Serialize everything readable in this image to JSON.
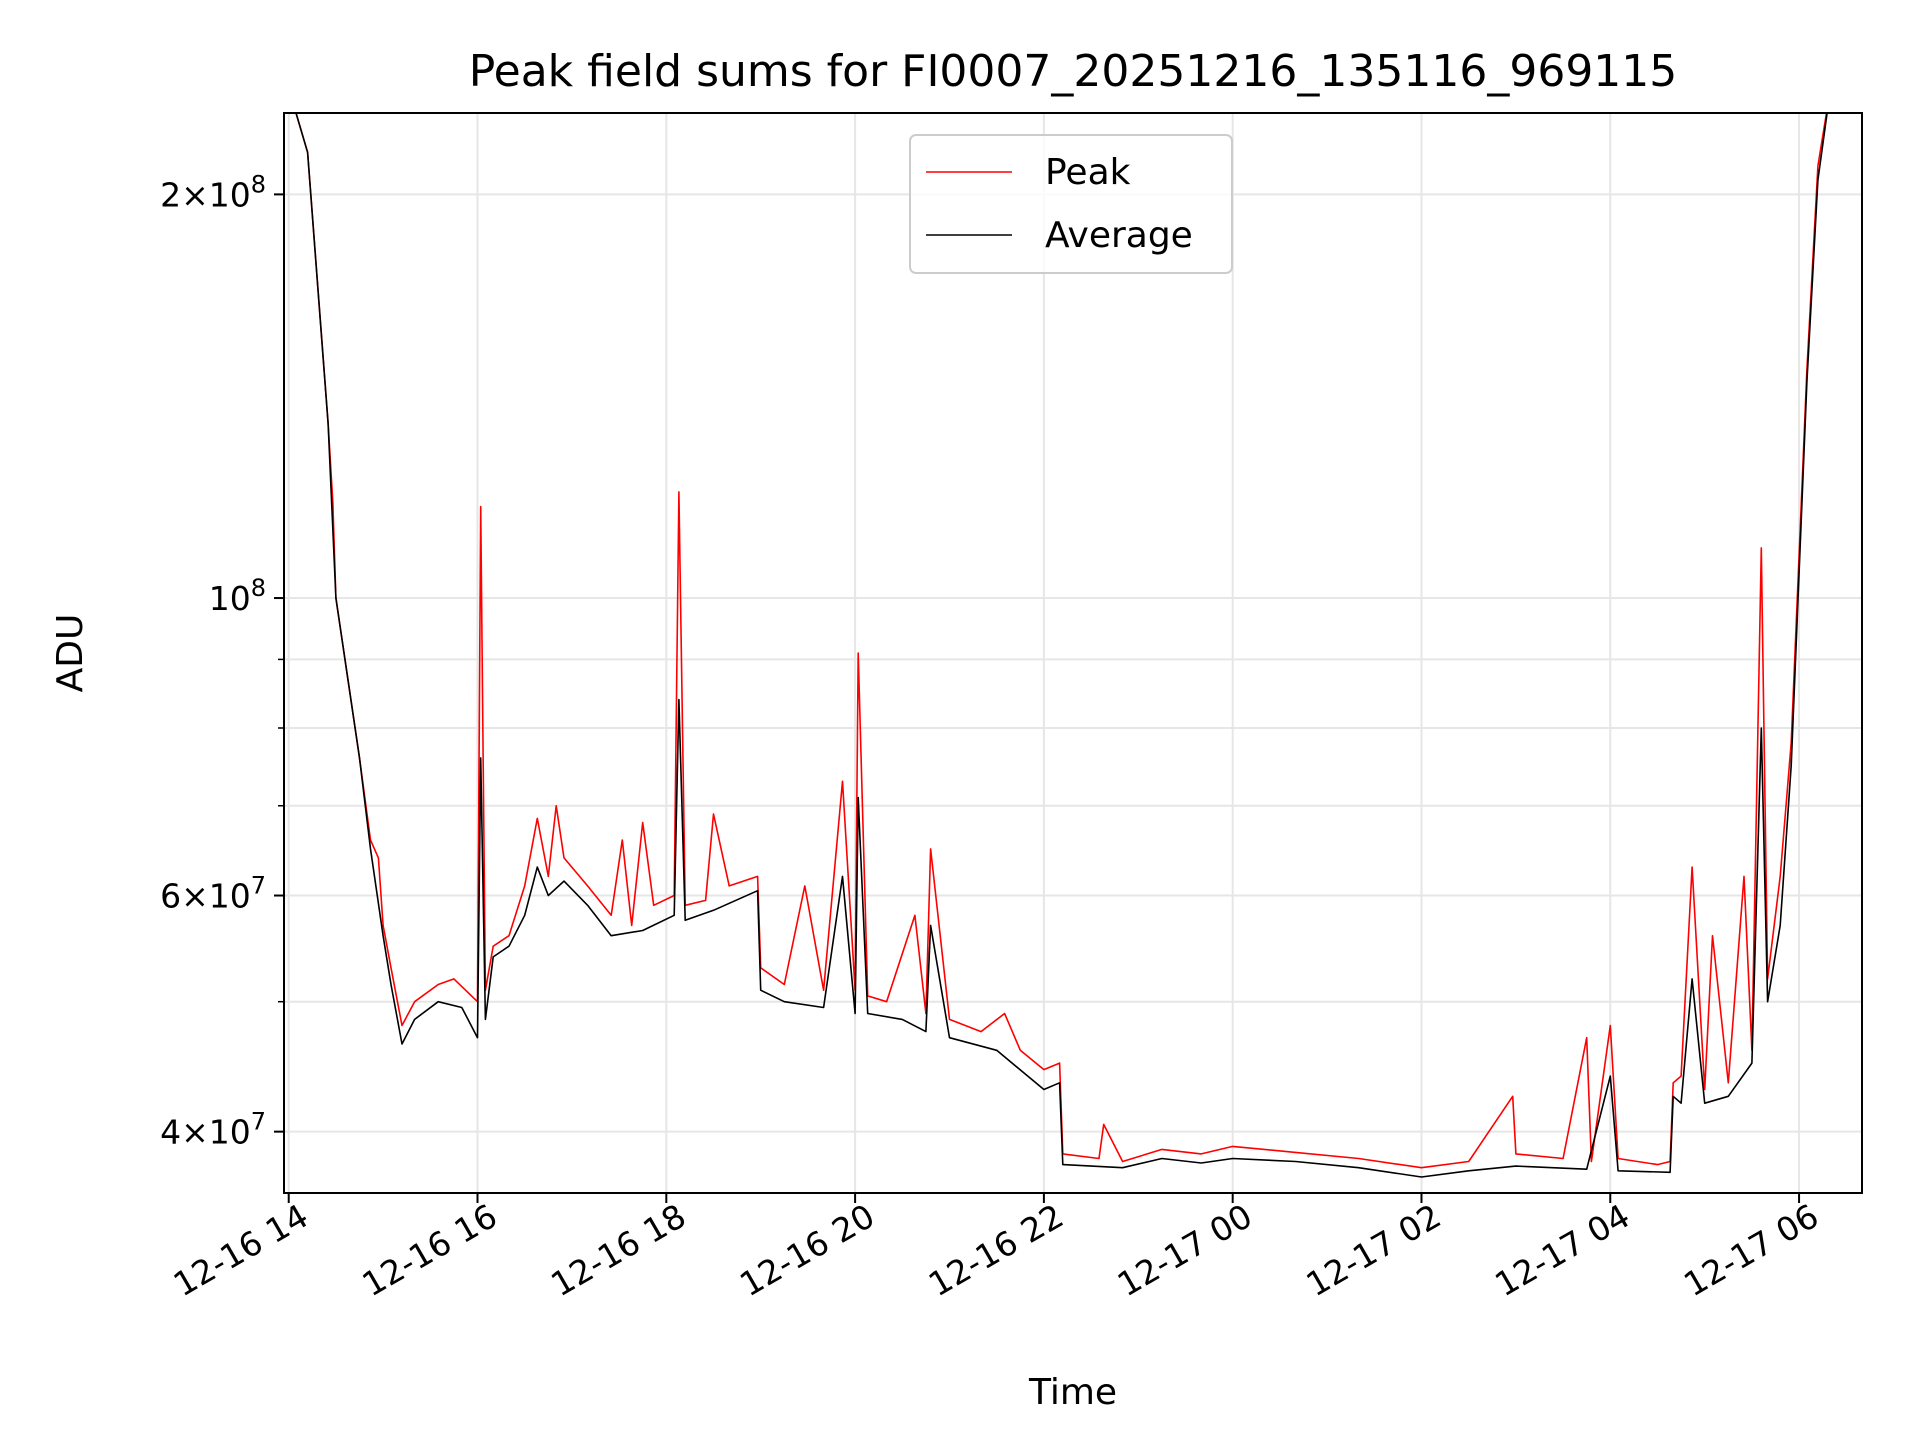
{
  "chart_data": {
    "type": "line",
    "title": "Peak field sums for FI0007_20251216_135116_969115",
    "xlabel": "Time",
    "ylabel": "ADU",
    "yscale": "log",
    "ylim": [
      36000000,
      230000000
    ],
    "xlim": [
      "2025-12-16 13:57",
      "2025-12-17 06:40"
    ],
    "grid": true,
    "legend_position": "upper center",
    "x_ticks": [
      "12-16 14",
      "12-16 16",
      "12-16 18",
      "12-16 20",
      "12-16 22",
      "12-17 00",
      "12-17 02",
      "12-17 04",
      "12-17 06"
    ],
    "y_ticks": [
      {
        "value": 40000000,
        "base": "4",
        "exp": "7"
      },
      {
        "value": 60000000,
        "base": "6",
        "exp": "7"
      },
      {
        "value": 100000000,
        "base": "",
        "exp": "8"
      },
      {
        "value": 200000000,
        "base": "2",
        "exp": "8"
      }
    ],
    "series": [
      {
        "name": "Peak",
        "color": "#ff0000",
        "points": [
          [
            "2025-12-16 14:00",
            240000000
          ],
          [
            "2025-12-16 14:12",
            215000000
          ],
          [
            "2025-12-16 14:25",
            135000000
          ],
          [
            "2025-12-16 14:28",
            118000000
          ],
          [
            "2025-12-16 14:30",
            100000000
          ],
          [
            "2025-12-16 14:37",
            88000000
          ],
          [
            "2025-12-16 14:45",
            76000000
          ],
          [
            "2025-12-16 14:52",
            66000000
          ],
          [
            "2025-12-16 14:57",
            64000000
          ],
          [
            "2025-12-16 15:00",
            57000000
          ],
          [
            "2025-12-16 15:05",
            53000000
          ],
          [
            "2025-12-16 15:12",
            48000000
          ],
          [
            "2025-12-16 15:20",
            50000000
          ],
          [
            "2025-12-16 15:35",
            51500000
          ],
          [
            "2025-12-16 15:45",
            52000000
          ],
          [
            "2025-12-16 16:00",
            50000000
          ],
          [
            "2025-12-16 16:02",
            117000000
          ],
          [
            "2025-12-16 16:05",
            51000000
          ],
          [
            "2025-12-16 16:10",
            55000000
          ],
          [
            "2025-12-16 16:20",
            56000000
          ],
          [
            "2025-12-16 16:30",
            61000000
          ],
          [
            "2025-12-16 16:38",
            68500000
          ],
          [
            "2025-12-16 16:45",
            62000000
          ],
          [
            "2025-12-16 16:50",
            70000000
          ],
          [
            "2025-12-16 16:55",
            64000000
          ],
          [
            "2025-12-16 17:10",
            61000000
          ],
          [
            "2025-12-16 17:25",
            58000000
          ],
          [
            "2025-12-16 17:32",
            66000000
          ],
          [
            "2025-12-16 17:38",
            57000000
          ],
          [
            "2025-12-16 17:45",
            68000000
          ],
          [
            "2025-12-16 17:52",
            59000000
          ],
          [
            "2025-12-16 18:05",
            60000000
          ],
          [
            "2025-12-16 18:08",
            120000000
          ],
          [
            "2025-12-16 18:12",
            59000000
          ],
          [
            "2025-12-16 18:25",
            59500000
          ],
          [
            "2025-12-16 18:30",
            69000000
          ],
          [
            "2025-12-16 18:40",
            61000000
          ],
          [
            "2025-12-16 18:58",
            62000000
          ],
          [
            "2025-12-16 19:00",
            53000000
          ],
          [
            "2025-12-16 19:15",
            51500000
          ],
          [
            "2025-12-16 19:28",
            61000000
          ],
          [
            "2025-12-16 19:40",
            51000000
          ],
          [
            "2025-12-16 19:52",
            73000000
          ],
          [
            "2025-12-16 20:00",
            51000000
          ],
          [
            "2025-12-16 20:02",
            91000000
          ],
          [
            "2025-12-16 20:08",
            50500000
          ],
          [
            "2025-12-16 20:20",
            50000000
          ],
          [
            "2025-12-16 20:38",
            58000000
          ],
          [
            "2025-12-16 20:45",
            49000000
          ],
          [
            "2025-12-16 20:48",
            65000000
          ],
          [
            "2025-12-16 21:00",
            48500000
          ],
          [
            "2025-12-16 21:20",
            47500000
          ],
          [
            "2025-12-16 21:35",
            49000000
          ],
          [
            "2025-12-16 21:45",
            46000000
          ],
          [
            "2025-12-16 22:00",
            44500000
          ],
          [
            "2025-12-16 22:10",
            45000000
          ],
          [
            "2025-12-16 22:12",
            38500000
          ],
          [
            "2025-12-16 22:35",
            38200000
          ],
          [
            "2025-12-16 22:38",
            40500000
          ],
          [
            "2025-12-16 22:50",
            38000000
          ],
          [
            "2025-12-16 23:15",
            38800000
          ],
          [
            "2025-12-16 23:40",
            38500000
          ],
          [
            "2025-12-17 00:00",
            39000000
          ],
          [
            "2025-12-17 00:40",
            38600000
          ],
          [
            "2025-12-17 01:20",
            38200000
          ],
          [
            "2025-12-17 02:00",
            37600000
          ],
          [
            "2025-12-17 02:30",
            38000000
          ],
          [
            "2025-12-17 02:58",
            42500000
          ],
          [
            "2025-12-17 03:00",
            38500000
          ],
          [
            "2025-12-17 03:30",
            38200000
          ],
          [
            "2025-12-17 03:45",
            47000000
          ],
          [
            "2025-12-17 03:48",
            38000000
          ],
          [
            "2025-12-17 04:00",
            48000000
          ],
          [
            "2025-12-17 04:05",
            38200000
          ],
          [
            "2025-12-17 04:30",
            37800000
          ],
          [
            "2025-12-17 04:38",
            38000000
          ],
          [
            "2025-12-17 04:40",
            43500000
          ],
          [
            "2025-12-17 04:45",
            44000000
          ],
          [
            "2025-12-17 04:52",
            63000000
          ],
          [
            "2025-12-17 05:00",
            43000000
          ],
          [
            "2025-12-17 05:05",
            56000000
          ],
          [
            "2025-12-17 05:15",
            43500000
          ],
          [
            "2025-12-17 05:25",
            62000000
          ],
          [
            "2025-12-17 05:30",
            46000000
          ],
          [
            "2025-12-17 05:36",
            109000000
          ],
          [
            "2025-12-17 05:40",
            52000000
          ],
          [
            "2025-12-17 05:48",
            62000000
          ],
          [
            "2025-12-17 05:55",
            78000000
          ],
          [
            "2025-12-17 06:05",
            148000000
          ],
          [
            "2025-12-17 06:12",
            210000000
          ],
          [
            "2025-12-17 06:20",
            240000000
          ]
        ]
      },
      {
        "name": "Average",
        "color": "#000000",
        "points": [
          [
            "2025-12-16 14:00",
            240000000
          ],
          [
            "2025-12-16 14:12",
            215000000
          ],
          [
            "2025-12-16 14:25",
            135000000
          ],
          [
            "2025-12-16 14:30",
            100000000
          ],
          [
            "2025-12-16 14:37",
            88000000
          ],
          [
            "2025-12-16 14:45",
            76000000
          ],
          [
            "2025-12-16 14:52",
            65000000
          ],
          [
            "2025-12-16 15:00",
            56000000
          ],
          [
            "2025-12-16 15:05",
            51500000
          ],
          [
            "2025-12-16 15:12",
            46500000
          ],
          [
            "2025-12-16 15:20",
            48500000
          ],
          [
            "2025-12-16 15:35",
            50000000
          ],
          [
            "2025-12-16 15:50",
            49500000
          ],
          [
            "2025-12-16 16:00",
            47000000
          ],
          [
            "2025-12-16 16:02",
            76000000
          ],
          [
            "2025-12-16 16:05",
            48500000
          ],
          [
            "2025-12-16 16:10",
            54000000
          ],
          [
            "2025-12-16 16:20",
            55000000
          ],
          [
            "2025-12-16 16:30",
            58000000
          ],
          [
            "2025-12-16 16:38",
            63000000
          ],
          [
            "2025-12-16 16:45",
            60000000
          ],
          [
            "2025-12-16 16:55",
            61500000
          ],
          [
            "2025-12-16 17:10",
            59000000
          ],
          [
            "2025-12-16 17:25",
            56000000
          ],
          [
            "2025-12-16 17:45",
            56500000
          ],
          [
            "2025-12-16 18:05",
            58000000
          ],
          [
            "2025-12-16 18:08",
            84000000
          ],
          [
            "2025-12-16 18:12",
            57500000
          ],
          [
            "2025-12-16 18:30",
            58500000
          ],
          [
            "2025-12-16 18:58",
            60500000
          ],
          [
            "2025-12-16 19:00",
            51000000
          ],
          [
            "2025-12-16 19:15",
            50000000
          ],
          [
            "2025-12-16 19:40",
            49500000
          ],
          [
            "2025-12-16 19:52",
            62000000
          ],
          [
            "2025-12-16 20:00",
            49000000
          ],
          [
            "2025-12-16 20:02",
            71000000
          ],
          [
            "2025-12-16 20:08",
            49000000
          ],
          [
            "2025-12-16 20:30",
            48500000
          ],
          [
            "2025-12-16 20:45",
            47500000
          ],
          [
            "2025-12-16 20:48",
            57000000
          ],
          [
            "2025-12-16 21:00",
            47000000
          ],
          [
            "2025-12-16 21:30",
            46000000
          ],
          [
            "2025-12-16 22:00",
            43000000
          ],
          [
            "2025-12-16 22:10",
            43500000
          ],
          [
            "2025-12-16 22:12",
            37800000
          ],
          [
            "2025-12-16 22:50",
            37600000
          ],
          [
            "2025-12-16 23:15",
            38200000
          ],
          [
            "2025-12-16 23:40",
            37900000
          ],
          [
            "2025-12-17 00:00",
            38200000
          ],
          [
            "2025-12-17 00:40",
            38000000
          ],
          [
            "2025-12-17 01:20",
            37600000
          ],
          [
            "2025-12-17 02:00",
            37000000
          ],
          [
            "2025-12-17 02:30",
            37400000
          ],
          [
            "2025-12-17 03:00",
            37700000
          ],
          [
            "2025-12-17 03:45",
            37500000
          ],
          [
            "2025-12-17 04:00",
            44000000
          ],
          [
            "2025-12-17 04:05",
            37400000
          ],
          [
            "2025-12-17 04:38",
            37300000
          ],
          [
            "2025-12-17 04:40",
            42500000
          ],
          [
            "2025-12-17 04:45",
            42000000
          ],
          [
            "2025-12-17 04:52",
            52000000
          ],
          [
            "2025-12-17 05:00",
            42000000
          ],
          [
            "2025-12-17 05:15",
            42500000
          ],
          [
            "2025-12-17 05:30",
            45000000
          ],
          [
            "2025-12-17 05:36",
            80000000
          ],
          [
            "2025-12-17 05:40",
            50000000
          ],
          [
            "2025-12-17 05:48",
            57000000
          ],
          [
            "2025-12-17 05:55",
            75000000
          ],
          [
            "2025-12-17 06:05",
            145000000
          ],
          [
            "2025-12-17 06:12",
            205000000
          ],
          [
            "2025-12-17 06:20",
            240000000
          ]
        ]
      }
    ]
  }
}
